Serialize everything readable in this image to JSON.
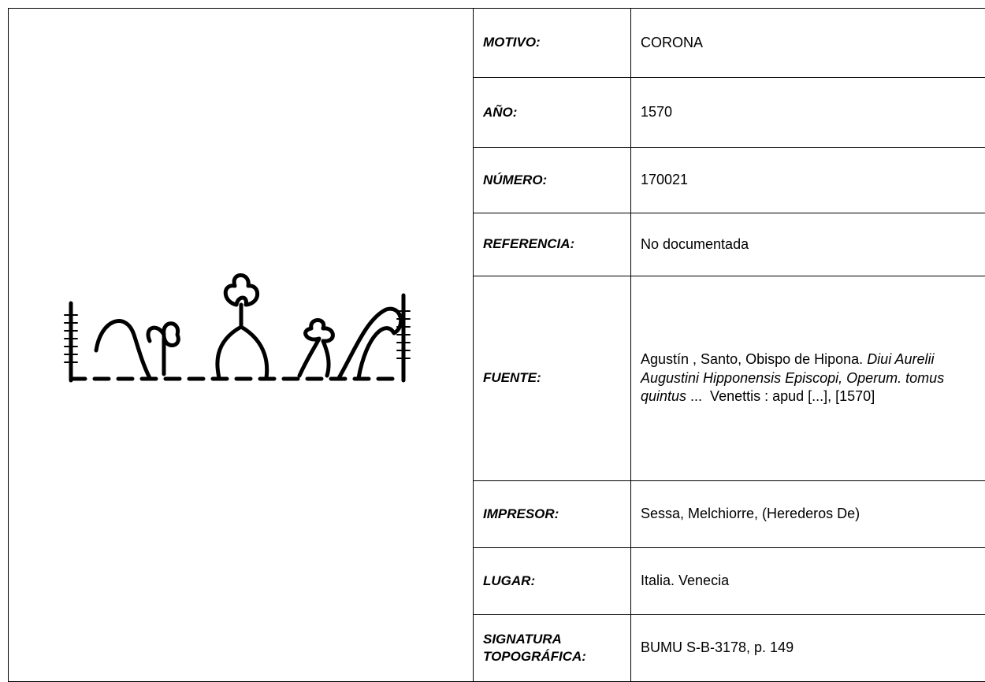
{
  "table": {
    "rows": [
      {
        "label": "MOTIVO:",
        "value": "CORONA"
      },
      {
        "label": "AÑO:",
        "value": "1570"
      },
      {
        "label": "NÚMERO:",
        "value": "170021"
      },
      {
        "label": "REFERENCIA:",
        "value": "No documentada"
      },
      {
        "label": "FUENTE:",
        "segments": [
          {
            "text": "Agustín , Santo, Obispo de Hipona. ",
            "italic": false
          },
          {
            "text": "Diui Aurelii Augustini Hipponensis Episcopi, Operum. tomus quintus",
            "italic": true
          },
          {
            "text": " ...  Venettis : apud [...], [1570]",
            "italic": false
          }
        ]
      },
      {
        "label": "IMPRESOR:",
        "value": "Sessa, Melchiorre, (Herederos De)"
      },
      {
        "label": "LUGAR:",
        "value": "Italia. Venecia"
      },
      {
        "label": "SIGNATURA TOPOGRÁFICA:",
        "value": "BUMU S-B-3178, p. 149"
      }
    ]
  }
}
